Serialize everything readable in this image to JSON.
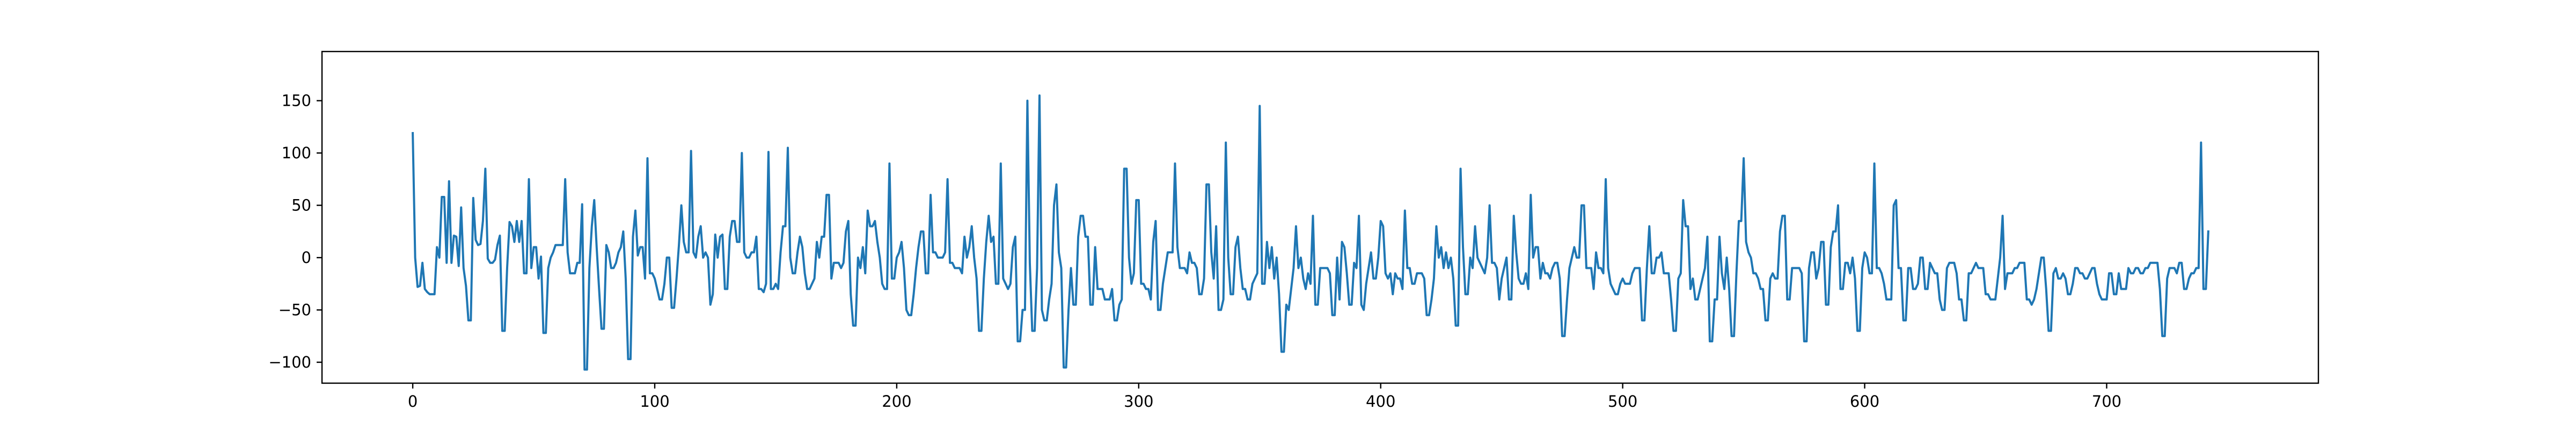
{
  "chart_data": {
    "type": "line",
    "title": "",
    "xlabel": "",
    "ylabel": "",
    "xlim": [
      -37.5,
      787.5
    ],
    "ylim": [
      -120,
      197
    ],
    "x_ticks": [
      0,
      100,
      200,
      300,
      400,
      500,
      600,
      700
    ],
    "y_ticks": [
      -100,
      -50,
      0,
      50,
      100,
      150
    ],
    "grid": false,
    "legend": "none",
    "line_color": "#1f77b4",
    "series": [
      {
        "x_start": 0,
        "x_step": 1,
        "values": [
          119,
          0,
          -28,
          -27,
          -5,
          -30,
          -33,
          -35,
          -35,
          -35,
          10,
          0,
          58,
          58,
          -5,
          73,
          -5,
          21,
          20,
          -8,
          48,
          -10,
          -27,
          -60,
          -60,
          57,
          17,
          12,
          13,
          35,
          85,
          -1,
          -5,
          -5,
          -2,
          12,
          21,
          -70,
          -70,
          -10,
          34,
          30,
          15,
          35,
          15,
          35,
          -15,
          -15,
          75,
          -10,
          10,
          10,
          -20,
          1,
          -72,
          -72,
          -10,
          0,
          5,
          12,
          12,
          12,
          12,
          75,
          5,
          -15,
          -15,
          -15,
          -5,
          -5,
          51,
          -107,
          -107,
          -10,
          30,
          55,
          10,
          -30,
          -68,
          -68,
          12,
          5,
          -10,
          -10,
          -5,
          5,
          10,
          25,
          -20,
          -97,
          -97,
          20,
          45,
          2,
          10,
          10,
          -20,
          95,
          -15,
          -15,
          -20,
          -30,
          -40,
          -40,
          -25,
          0,
          0,
          -48,
          -48,
          -20,
          12,
          50,
          15,
          5,
          5,
          102,
          5,
          0,
          20,
          30,
          0,
          5,
          0,
          -45,
          -35,
          22,
          0,
          20,
          22,
          -30,
          -30,
          20,
          35,
          35,
          15,
          15,
          100,
          5,
          0,
          0,
          5,
          5,
          20,
          -30,
          -30,
          -33,
          -25,
          101,
          -30,
          -30,
          -25,
          -30,
          5,
          30,
          30,
          105,
          0,
          -15,
          -15,
          5,
          20,
          10,
          -15,
          -30,
          -30,
          -25,
          -20,
          15,
          0,
          20,
          20,
          60,
          60,
          -20,
          -5,
          -5,
          -5,
          -10,
          -5,
          25,
          35,
          -35,
          -65,
          -65,
          0,
          -10,
          10,
          -15,
          45,
          30,
          30,
          35,
          15,
          0,
          -25,
          -30,
          -30,
          90,
          -20,
          -20,
          0,
          5,
          15,
          -10,
          -50,
          -55,
          -55,
          -35,
          -10,
          10,
          25,
          25,
          -15,
          -15,
          60,
          5,
          5,
          0,
          0,
          0,
          5,
          75,
          -5,
          -5,
          -10,
          -10,
          -10,
          -15,
          20,
          0,
          10,
          30,
          0,
          -20,
          -70,
          -70,
          -20,
          15,
          40,
          15,
          20,
          -25,
          -25,
          90,
          -20,
          -25,
          -30,
          -25,
          10,
          20,
          -80,
          -80,
          -50,
          -50,
          150,
          -5,
          -70,
          -70,
          -10,
          155,
          -50,
          -60,
          -60,
          -40,
          -25,
          50,
          70,
          5,
          -10,
          -105,
          -105,
          -50,
          -10,
          -45,
          -45,
          20,
          40,
          40,
          20,
          20,
          -45,
          -45,
          10,
          -30,
          -30,
          -30,
          -40,
          -40,
          -40,
          -30,
          -60,
          -60,
          -45,
          -40,
          85,
          85,
          0,
          -25,
          -15,
          55,
          55,
          -25,
          -25,
          -30,
          -30,
          -40,
          15,
          35,
          -50,
          -50,
          -25,
          -10,
          5,
          5,
          5,
          90,
          10,
          -10,
          -10,
          -10,
          -15,
          5,
          -5,
          -5,
          -10,
          -35,
          -35,
          -20,
          70,
          70,
          5,
          -20,
          30,
          -50,
          -50,
          -40,
          110,
          0,
          -35,
          -35,
          10,
          20,
          -10,
          -30,
          -30,
          -40,
          -40,
          -25,
          -20,
          -15,
          145,
          -25,
          -25,
          15,
          -10,
          10,
          -20,
          0,
          -35,
          -90,
          -90,
          -45,
          -50,
          -30,
          -10,
          30,
          -10,
          0,
          -20,
          -30,
          -15,
          -25,
          40,
          -45,
          -45,
          -10,
          -10,
          -10,
          -10,
          -15,
          -55,
          -55,
          0,
          -40,
          15,
          10,
          -15,
          -45,
          -45,
          -5,
          -10,
          40,
          -45,
          -50,
          -25,
          -10,
          5,
          -20,
          -20,
          0,
          35,
          30,
          -15,
          -20,
          -15,
          -35,
          -15,
          -20,
          -20,
          -30,
          45,
          -10,
          -10,
          -25,
          -25,
          -15,
          -15,
          -15,
          -20,
          -55,
          -55,
          -40,
          -20,
          30,
          0,
          10,
          -10,
          5,
          -10,
          0,
          -20,
          -65,
          -65,
          85,
          10,
          -35,
          -35,
          0,
          -10,
          30,
          0,
          -5,
          -10,
          -15,
          0,
          50,
          -5,
          -5,
          -10,
          -40,
          -20,
          -10,
          0,
          -40,
          -40,
          40,
          5,
          -20,
          -25,
          -25,
          -15,
          -30,
          60,
          0,
          10,
          10,
          -20,
          -5,
          -15,
          -15,
          -20,
          -10,
          -5,
          -5,
          -20,
          -75,
          -75,
          -40,
          -10,
          0,
          10,
          0,
          0,
          50,
          50,
          -10,
          -10,
          -10,
          -30,
          5,
          -10,
          -10,
          -15,
          75,
          -10,
          -25,
          -30,
          -35,
          -35,
          -25,
          -20,
          -25,
          -25,
          -25,
          -15,
          -10,
          -10,
          -10,
          -60,
          -60,
          -10,
          30,
          -15,
          -15,
          0,
          0,
          5,
          -15,
          -15,
          -15,
          -40,
          -70,
          -70,
          -20,
          -15,
          55,
          30,
          30,
          -30,
          -20,
          -40,
          -40,
          -30,
          -20,
          -10,
          20,
          -80,
          -80,
          -40,
          -40,
          20,
          -15,
          -30,
          0,
          -30,
          -75,
          -75,
          -15,
          35,
          35,
          95,
          15,
          5,
          0,
          -15,
          -15,
          -20,
          -30,
          -30,
          -60,
          -60,
          -20,
          -15,
          -20,
          -20,
          25,
          40,
          40,
          -40,
          -40,
          -10,
          -10,
          -10,
          -10,
          -15,
          -80,
          -80,
          -10,
          5,
          5,
          -20,
          -10,
          15,
          15,
          -45,
          -45,
          10,
          25,
          25,
          50,
          -30,
          -30,
          -5,
          -5,
          -15,
          0,
          -20,
          -70,
          -70,
          -10,
          5,
          0,
          -15,
          -15,
          90,
          -10,
          -10,
          -15,
          -25,
          -40,
          -40,
          -40,
          50,
          55,
          -10,
          -10,
          -60,
          -60,
          -10,
          -10,
          -30,
          -30,
          -25,
          0,
          0,
          -30,
          -30,
          -5,
          -10,
          -15,
          -15,
          -40,
          -50,
          -50,
          -10,
          -5,
          -5,
          -5,
          -15,
          -40,
          -40,
          -60,
          -60,
          -15,
          -15,
          -10,
          -5,
          -10,
          -10,
          -10,
          -35,
          -35,
          -40,
          -40,
          -40,
          -20,
          0,
          40,
          -30,
          -15,
          -15,
          -15,
          -10,
          -10,
          -5,
          -5,
          -5,
          -40,
          -40,
          -45,
          -40,
          -30,
          -15,
          0,
          0,
          -30,
          -70,
          -70,
          -15,
          -10,
          -20,
          -20,
          -15,
          -20,
          -35,
          -35,
          -25,
          -10,
          -10,
          -15,
          -15,
          -20,
          -20,
          -15,
          -10,
          -10,
          -25,
          -35,
          -40,
          -40,
          -40,
          -15,
          -15,
          -35,
          -35,
          -15,
          -30,
          -30,
          -30,
          -10,
          -15,
          -15,
          -10,
          -10,
          -15,
          -15,
          -10,
          -10,
          -5,
          -5,
          -5,
          -5,
          -30,
          -75,
          -75,
          -20,
          -10,
          -10,
          -10,
          -15,
          -5,
          -5,
          -30,
          -30,
          -20,
          -15,
          -15,
          -10,
          -10,
          110,
          -30,
          -30,
          25
        ]
      }
    ]
  }
}
